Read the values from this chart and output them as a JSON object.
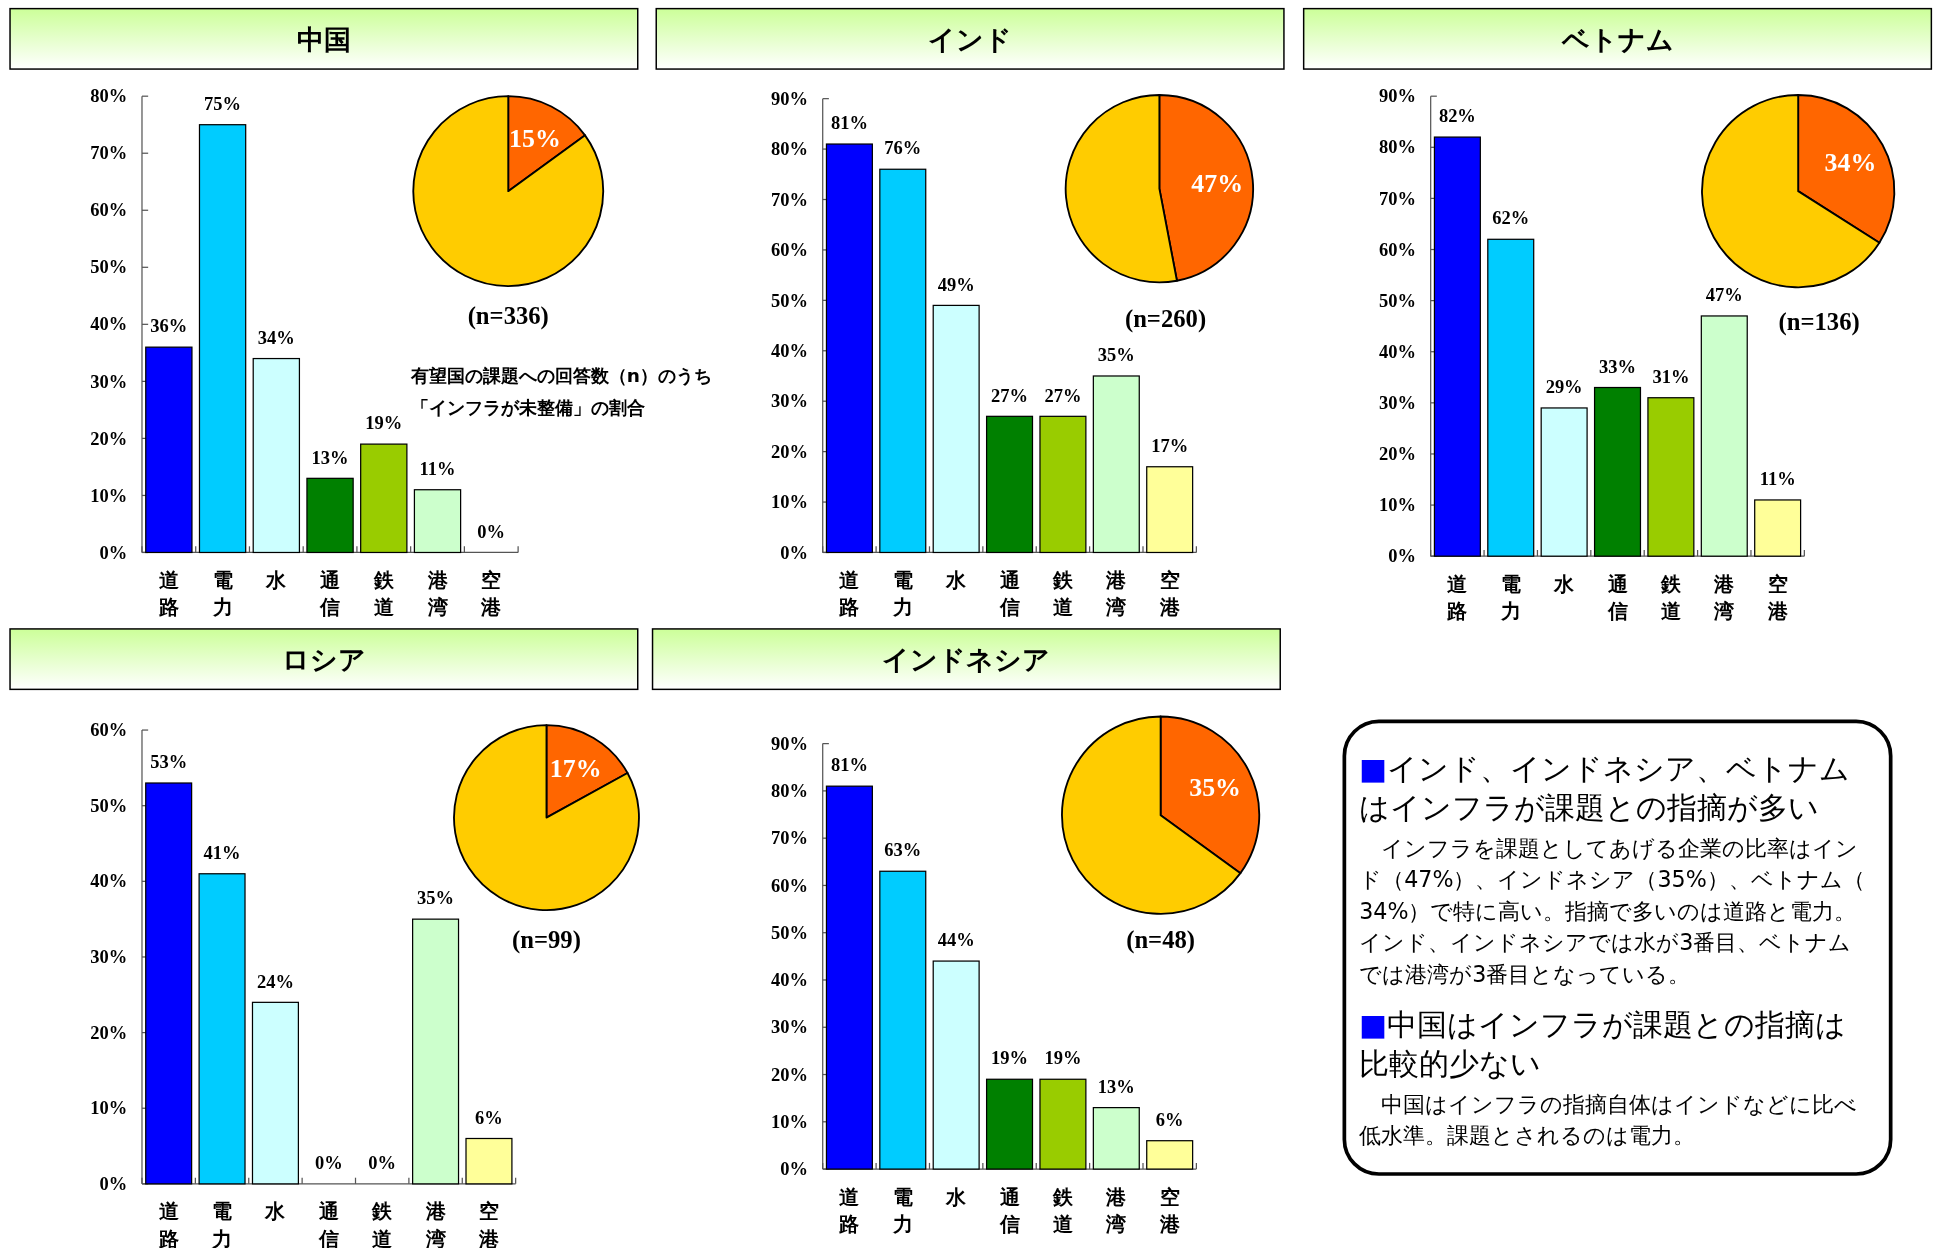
{
  "chart_data": [
    {
      "type": "bar",
      "title": "中国",
      "categories": [
        "道路",
        "電力",
        "水",
        "通信",
        "鉄道",
        "港湾",
        "空港"
      ],
      "values": [
        36,
        75,
        34,
        13,
        19,
        11,
        0
      ],
      "colors": [
        "#0000ff",
        "#00ccff",
        "#ccffff",
        "#008000",
        "#99cc00",
        "#ccffcc",
        null
      ],
      "value_labels": [
        "36%",
        "75%",
        "34%",
        "13%",
        "19%",
        "11%",
        "0%"
      ],
      "ylim": [
        0,
        80
      ],
      "yticks": [
        {
          "value": 0,
          "label": "0%"
        },
        {
          "value": 10,
          "label": "10%"
        },
        {
          "value": 20,
          "label": "20%"
        },
        {
          "value": 30,
          "label": "30%"
        },
        {
          "value": 40,
          "label": "40%"
        },
        {
          "value": 50,
          "label": "50%"
        },
        {
          "value": 60,
          "label": "60%"
        },
        {
          "value": 70,
          "label": "70%"
        },
        {
          "value": 80,
          "label": "80%"
        }
      ],
      "annotations": [
        "有望国の課題への回答数（n）のうち",
        "「インフラが未整備」の割合"
      ]
    },
    {
      "type": "pie",
      "categories": [
        null,
        null
      ],
      "values": [
        15,
        85
      ],
      "colors": [
        "#ff6600",
        "#ffcc00"
      ],
      "value_labels": [
        "15%",
        null
      ],
      "annotations": [
        "(n=336)"
      ]
    },
    {
      "type": "bar",
      "title": "インド",
      "categories": [
        "道路",
        "電力",
        "水",
        "通信",
        "鉄道",
        "港湾",
        "空港"
      ],
      "values": [
        81,
        76,
        49,
        27,
        27,
        35,
        17
      ],
      "colors": [
        "#0000ff",
        "#00ccff",
        "#ccffff",
        "#008000",
        "#99cc00",
        "#ccffcc",
        "#ffff99"
      ],
      "value_labels": [
        "81%",
        "76%",
        "49%",
        "27%",
        "27%",
        "35%",
        "17%"
      ],
      "ylim": [
        0,
        90
      ],
      "yticks": [
        {
          "value": 0,
          "label": "0%"
        },
        {
          "value": 10,
          "label": "10%"
        },
        {
          "value": 20,
          "label": "20%"
        },
        {
          "value": 30,
          "label": "30%"
        },
        {
          "value": 40,
          "label": "40%"
        },
        {
          "value": 50,
          "label": "50%"
        },
        {
          "value": 60,
          "label": "60%"
        },
        {
          "value": 70,
          "label": "70%"
        },
        {
          "value": 80,
          "label": "80%"
        },
        {
          "value": 90,
          "label": "90%"
        }
      ]
    },
    {
      "type": "pie",
      "categories": [
        null,
        null
      ],
      "values": [
        47,
        53
      ],
      "colors": [
        "#ff6600",
        "#ffcc00"
      ],
      "value_labels": [
        "47%",
        null
      ],
      "annotations": [
        "(n=260)"
      ]
    },
    {
      "type": "bar",
      "title": "ベトナム",
      "categories": [
        "道路",
        "電力",
        "水",
        "通信",
        "鉄道",
        "港湾",
        "空港"
      ],
      "values": [
        82,
        62,
        29,
        33,
        31,
        47,
        11
      ],
      "colors": [
        "#0000ff",
        "#00ccff",
        "#ccffff",
        "#008000",
        "#99cc00",
        "#ccffcc",
        "#ffff99"
      ],
      "value_labels": [
        "82%",
        "62%",
        "29%",
        "33%",
        "31%",
        "47%",
        "11%"
      ],
      "ylim": [
        0,
        90
      ],
      "yticks": [
        {
          "value": 0,
          "label": "0%"
        },
        {
          "value": 10,
          "label": "10%"
        },
        {
          "value": 20,
          "label": "20%"
        },
        {
          "value": 30,
          "label": "30%"
        },
        {
          "value": 40,
          "label": "40%"
        },
        {
          "value": 50,
          "label": "50%"
        },
        {
          "value": 60,
          "label": "60%"
        },
        {
          "value": 70,
          "label": "70%"
        },
        {
          "value": 80,
          "label": "80%"
        },
        {
          "value": 90,
          "label": "90%"
        }
      ]
    },
    {
      "type": "pie",
      "categories": [
        null,
        null
      ],
      "values": [
        34,
        66
      ],
      "colors": [
        "#ff6600",
        "#ffcc00"
      ],
      "value_labels": [
        "34%",
        null
      ],
      "annotations": [
        "(n=136)"
      ]
    },
    {
      "type": "bar",
      "title": "ロシア",
      "categories": [
        "道路",
        "電力",
        "水",
        "通信",
        "鉄道",
        "港湾",
        "空港"
      ],
      "values": [
        53,
        41,
        24,
        0,
        0,
        35,
        6
      ],
      "colors": [
        "#0000ff",
        "#00ccff",
        "#ccffff",
        null,
        null,
        "#ccffcc",
        "#ffff99"
      ],
      "value_labels": [
        "53%",
        "41%",
        "24%",
        "0%",
        "0%",
        "35%",
        "6%"
      ],
      "ylim": [
        0,
        60
      ],
      "yticks": [
        {
          "value": 0,
          "label": "0%"
        },
        {
          "value": 10,
          "label": "10%"
        },
        {
          "value": 20,
          "label": "20%"
        },
        {
          "value": 30,
          "label": "30%"
        },
        {
          "value": 40,
          "label": "40%"
        },
        {
          "value": 50,
          "label": "50%"
        },
        {
          "value": 60,
          "label": "60%"
        }
      ]
    },
    {
      "type": "pie",
      "categories": [
        null,
        null
      ],
      "values": [
        17,
        83
      ],
      "colors": [
        "#ff6600",
        "#ffcc00"
      ],
      "value_labels": [
        "17%",
        null
      ],
      "annotations": [
        "(n=99)"
      ]
    },
    {
      "type": "bar",
      "title": "インドネシア",
      "categories": [
        "道路",
        "電力",
        "水",
        "通信",
        "鉄道",
        "港湾",
        "空港"
      ],
      "values": [
        81,
        63,
        44,
        19,
        19,
        13,
        6
      ],
      "colors": [
        "#0000ff",
        "#00ccff",
        "#ccffff",
        "#008000",
        "#99cc00",
        "#ccffcc",
        "#ffff99"
      ],
      "value_labels": [
        "81%",
        "63%",
        "44%",
        "19%",
        "19%",
        "13%",
        "6%"
      ],
      "ylim": [
        0,
        90
      ],
      "yticks": [
        {
          "value": 0,
          "label": "0%"
        },
        {
          "value": 10,
          "label": "10%"
        },
        {
          "value": 20,
          "label": "20%"
        },
        {
          "value": 30,
          "label": "30%"
        },
        {
          "value": 40,
          "label": "40%"
        },
        {
          "value": 50,
          "label": "50%"
        },
        {
          "value": 60,
          "label": "60%"
        },
        {
          "value": 70,
          "label": "70%"
        },
        {
          "value": 80,
          "label": "80%"
        },
        {
          "value": 90,
          "label": "90%"
        }
      ]
    },
    {
      "type": "pie",
      "categories": [
        null,
        null
      ],
      "values": [
        35,
        65
      ],
      "colors": [
        "#ff6600",
        "#ffcc00"
      ],
      "value_labels": [
        "35%",
        null
      ],
      "annotations": [
        "(n=48)"
      ]
    },
    {
      "type": "other",
      "annotations": [
        "■インド、インドネシア、ベトナムはインフラが課題との指摘が多い",
        "　インフラを課題としてあげる企業の比率はインド（47%）、インドネシア（35%）、ベトナム（34%）で特に高い。指摘で多いのは道路と電力。インド、インドネシアでは水が3番目、ベトナムでは港湾が3番目となっている。",
        "■中国はインフラが課題との指摘は比較的少ない",
        "　中国はインフラの指摘自体はインドなどに比べ低水準。課題とされるのは電力。"
      ]
    }
  ]
}
